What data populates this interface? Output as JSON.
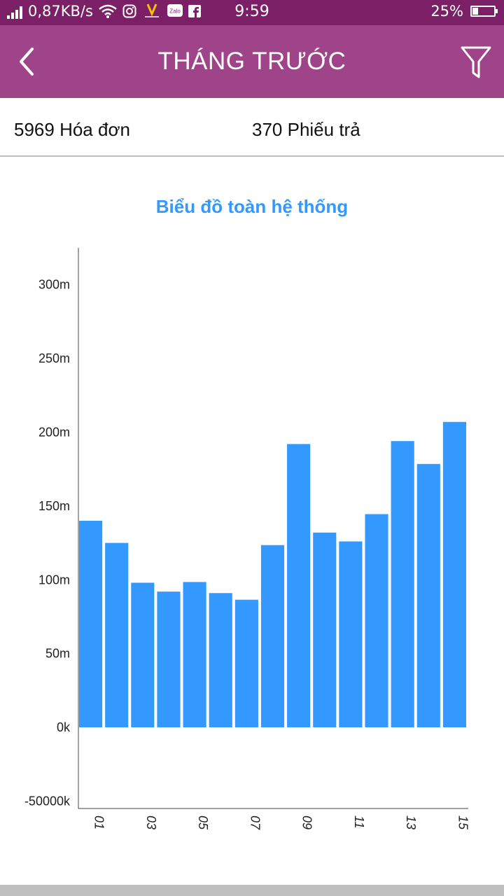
{
  "status_bar": {
    "network_speed": "0,87KB/s",
    "time": "9:59",
    "battery": "25%",
    "battery_level": 0.25,
    "icons": [
      "signal-icon",
      "wifi-icon",
      "instagram-icon",
      "app-icon",
      "zalo-icon",
      "facebook-icon",
      "battery-icon"
    ],
    "zalo_label": "Zalo"
  },
  "app_bar": {
    "title": "THÁNG TRƯỚC",
    "back_icon": "back-arrow-icon",
    "filter_icon": "filter-icon",
    "color": "#a0448a"
  },
  "summary": {
    "invoices": "5969 Hóa đơn",
    "returns": "370 Phiếu trả"
  },
  "chart_title": "Biểu đồ toàn hệ thống",
  "chart_data": {
    "type": "bar",
    "title": "Biểu đồ toàn hệ thống",
    "xlabel": "",
    "ylabel": "",
    "categories": [
      "01",
      "02",
      "03",
      "04",
      "05",
      "06",
      "07",
      "08",
      "09",
      "10",
      "11",
      "12",
      "13",
      "14",
      "15"
    ],
    "values": [
      140,
      125,
      98,
      92,
      98.5,
      91,
      86.5,
      123.5,
      192,
      132,
      126,
      144.5,
      194,
      178.5,
      207
    ],
    "unit": "m",
    "ylim": [
      -55,
      325
    ],
    "yticks": [
      {
        "value": 300,
        "label": "300m"
      },
      {
        "value": 250,
        "label": "250m"
      },
      {
        "value": 200,
        "label": "200m"
      },
      {
        "value": 150,
        "label": "150m"
      },
      {
        "value": 100,
        "label": "100m"
      },
      {
        "value": 50,
        "label": "50m"
      },
      {
        "value": 0,
        "label": "0k"
      },
      {
        "value": -50,
        "label": "-50000k"
      }
    ],
    "xtick_labels": [
      "01",
      "",
      "03",
      "",
      "05",
      "",
      "07",
      "",
      "09",
      "",
      "11",
      "",
      "13",
      "",
      "15"
    ],
    "bar_color": "#3399ff",
    "grid": false
  }
}
